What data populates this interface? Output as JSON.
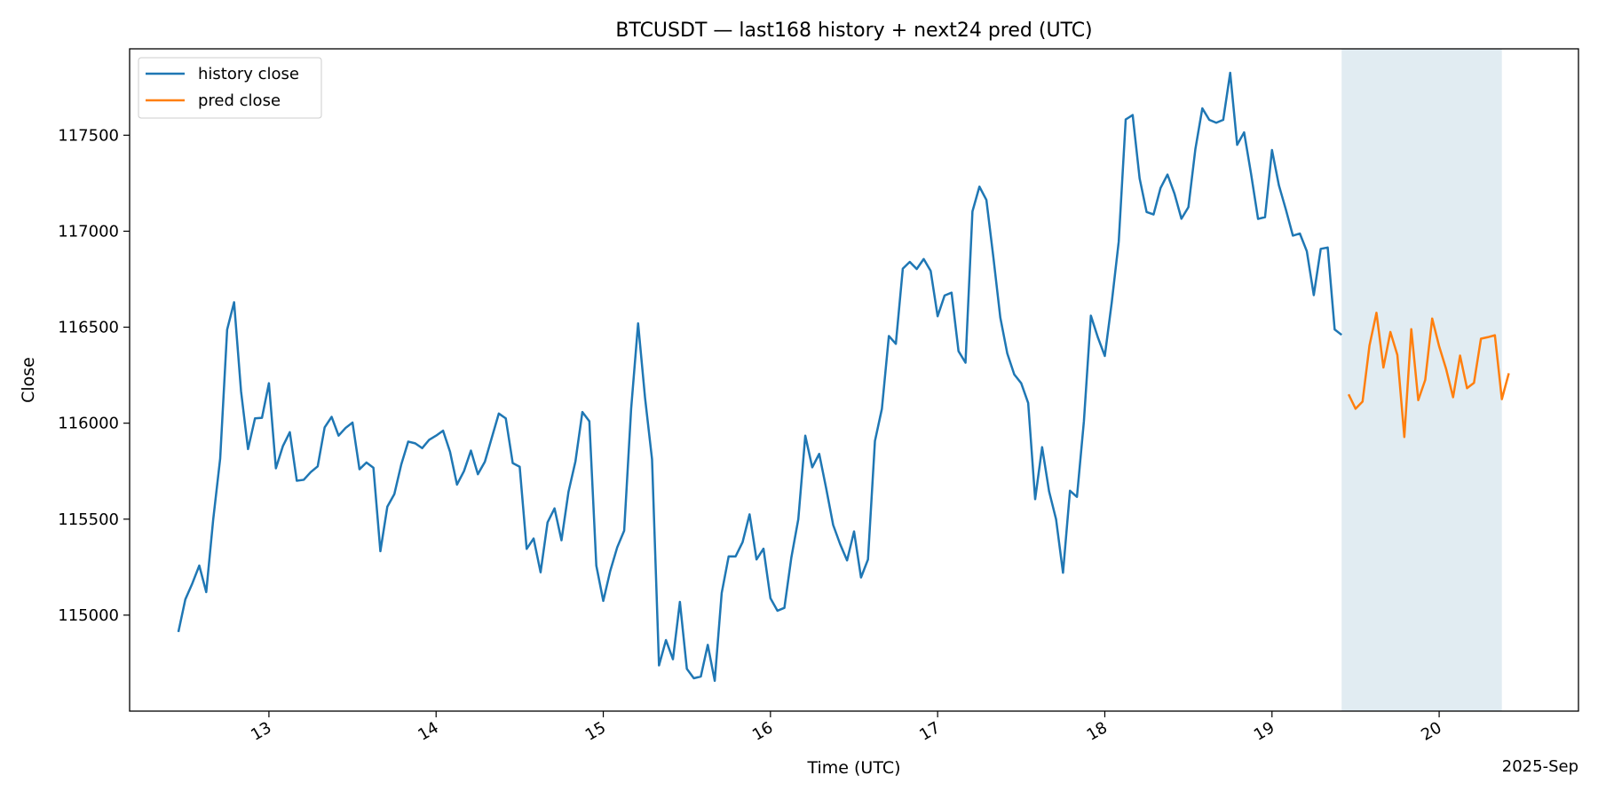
{
  "chart_data": {
    "type": "line",
    "title": "BTCUSDT — last168 history + next24 pred (UTC)",
    "xlabel": "Time (UTC)",
    "ylabel": "Close",
    "x_offset_label": "2025-Sep",
    "xlim": [
      "2025-09-12T04:00",
      "2025-09-20T20:00"
    ],
    "ylim": [
      114500,
      117950
    ],
    "x_ticks": [
      {
        "value": "2025-09-13T00:00",
        "label": "13"
      },
      {
        "value": "2025-09-14T00:00",
        "label": "14"
      },
      {
        "value": "2025-09-15T00:00",
        "label": "15"
      },
      {
        "value": "2025-09-16T00:00",
        "label": "16"
      },
      {
        "value": "2025-09-17T00:00",
        "label": "17"
      },
      {
        "value": "2025-09-18T00:00",
        "label": "18"
      },
      {
        "value": "2025-09-19T00:00",
        "label": "19"
      },
      {
        "value": "2025-09-20T00:00",
        "label": "20"
      }
    ],
    "y_ticks": [
      {
        "value": 115000,
        "label": "115000"
      },
      {
        "value": 115500,
        "label": "115500"
      },
      {
        "value": 116000,
        "label": "116000"
      },
      {
        "value": 116500,
        "label": "116500"
      },
      {
        "value": 117000,
        "label": "117000"
      },
      {
        "value": 117500,
        "label": "117500"
      }
    ],
    "grid": false,
    "legend_position": "top-left",
    "shaded_region": {
      "x_start": "2025-09-19T10:00",
      "x_end": "2025-09-20T09:00",
      "color": "#e1ecf2"
    },
    "series": [
      {
        "name": "history close",
        "color": "#1f77b4",
        "x_start": "2025-09-12T11:00",
        "x_step_hours": 1,
        "values": [
          114912,
          115082,
          115165,
          115258,
          115120,
          115498,
          115815,
          116487,
          116630,
          116165,
          115865,
          116025,
          116028,
          116208,
          115765,
          115880,
          115953,
          115700,
          115705,
          115745,
          115775,
          115978,
          116033,
          115935,
          115975,
          116003,
          115760,
          115795,
          115768,
          115333,
          115565,
          115630,
          115785,
          115904,
          115895,
          115870,
          115913,
          115935,
          115961,
          115851,
          115680,
          115750,
          115857,
          115734,
          115799,
          115925,
          116050,
          116025,
          115792,
          115773,
          115345,
          115399,
          115223,
          115483,
          115556,
          115390,
          115641,
          115800,
          116058,
          116010,
          115258,
          115074,
          115230,
          115353,
          115440,
          116075,
          116520,
          116130,
          115812,
          114738,
          114870,
          114770,
          115069,
          114720,
          114671,
          114680,
          114845,
          114658,
          115115,
          115306,
          115306,
          115380,
          115525,
          115290,
          115346,
          115088,
          115023,
          115038,
          115300,
          115500,
          115935,
          115770,
          115840,
          115660,
          115470,
          115370,
          115285,
          115436,
          115196,
          115290,
          115907,
          116075,
          116454,
          116413,
          116805,
          116840,
          116803,
          116855,
          116793,
          116557,
          116665,
          116680,
          116375,
          116315,
          117103,
          117232,
          117163,
          116865,
          116550,
          116363,
          116254,
          116208,
          116105,
          115604,
          115875,
          115645,
          115500,
          115221,
          115648,
          115616,
          116010,
          116560,
          116447,
          116350,
          116630,
          116946,
          117582,
          117605,
          117275,
          117100,
          117087,
          117225,
          117295,
          117196,
          117065,
          117125,
          117427,
          117640,
          117580,
          117565,
          117580,
          117825,
          117450,
          117515,
          117298,
          117064,
          117073,
          117423,
          117238,
          117112,
          116977,
          116988,
          116896,
          116667,
          116908,
          116915,
          116488,
          116460
        ]
      },
      {
        "name": "pred close",
        "color": "#ff7f0e",
        "x_start": "2025-09-19T11:00",
        "x_step_hours": 1,
        "values": [
          116150,
          116075,
          116112,
          116405,
          116575,
          116290,
          116475,
          116355,
          115928,
          116490,
          116120,
          116225,
          116545,
          116400,
          116282,
          116135,
          116352,
          116182,
          116210,
          116440,
          116448,
          116458,
          116125,
          116260
        ]
      }
    ]
  }
}
